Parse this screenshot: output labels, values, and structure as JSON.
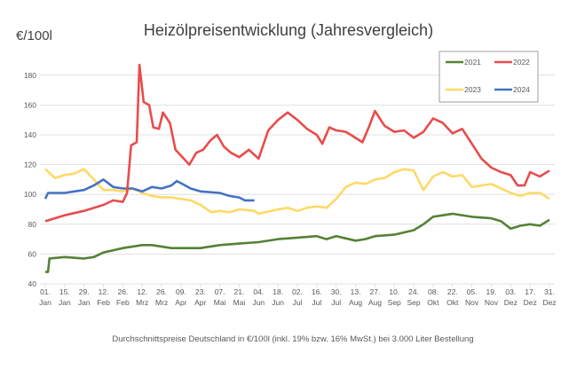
{
  "chart_data": {
    "type": "line",
    "title": "Heizölpreisentwicklung (Jahresvergleich)",
    "ylabel": "€/100l",
    "caption": "Durchschnittspreise Deutschland in €/100l (inkl. 19% bzw. 16%  MwSt.) bei 3.000 Liter Bestellung",
    "ylim": [
      40,
      190
    ],
    "yticks": [
      40,
      60,
      80,
      100,
      120,
      140,
      160,
      180
    ],
    "grid": true,
    "legend_position": "top-right",
    "xticks": [
      [
        "01.",
        "Jan"
      ],
      [
        "15.",
        "Jan"
      ],
      [
        "29.",
        "Jan"
      ],
      [
        "12.",
        "Feb"
      ],
      [
        "26.",
        "Feb"
      ],
      [
        "12.",
        "Mrz"
      ],
      [
        "26.",
        "Mrz"
      ],
      [
        "09.",
        "Apr"
      ],
      [
        "23.",
        "Apr"
      ],
      [
        "07.",
        "Mai"
      ],
      [
        "21.",
        "Mai"
      ],
      [
        "04.",
        "Jun"
      ],
      [
        "18.",
        "Jun"
      ],
      [
        "02.",
        "Jul"
      ],
      [
        "16.",
        "Jul"
      ],
      [
        "30.",
        "Jul"
      ],
      [
        "13.",
        "Aug"
      ],
      [
        "27.",
        "Aug"
      ],
      [
        "10.",
        "Sep"
      ],
      [
        "24.",
        "Sep"
      ],
      [
        "08.",
        "Okt"
      ],
      [
        "22.",
        "Okt"
      ],
      [
        "05.",
        "Nov"
      ],
      [
        "19.",
        "Nov"
      ],
      [
        "03.",
        "Dez"
      ],
      [
        "17.",
        "Dez"
      ],
      [
        "31.",
        "Dez"
      ]
    ],
    "series": [
      {
        "name": "2021",
        "color": "#548235",
        "points": [
          [
            "01-01",
            48
          ],
          [
            "01-03",
            48
          ],
          [
            "01-04",
            57
          ],
          [
            "01-15",
            58
          ],
          [
            "01-29",
            57
          ],
          [
            "02-05",
            58
          ],
          [
            "02-12",
            61
          ],
          [
            "02-26",
            64
          ],
          [
            "03-12",
            66
          ],
          [
            "03-19",
            66
          ],
          [
            "04-02",
            64
          ],
          [
            "04-23",
            64
          ],
          [
            "05-07",
            66
          ],
          [
            "05-21",
            67
          ],
          [
            "06-04",
            68
          ],
          [
            "06-18",
            70
          ],
          [
            "07-02",
            71
          ],
          [
            "07-16",
            72
          ],
          [
            "07-23",
            70
          ],
          [
            "07-30",
            72
          ],
          [
            "08-13",
            69
          ],
          [
            "08-20",
            70
          ],
          [
            "08-27",
            72
          ],
          [
            "09-10",
            73
          ],
          [
            "09-24",
            76
          ],
          [
            "10-01",
            80
          ],
          [
            "10-08",
            85
          ],
          [
            "10-22",
            87
          ],
          [
            "11-05",
            85
          ],
          [
            "11-19",
            84
          ],
          [
            "11-26",
            82
          ],
          [
            "12-03",
            77
          ],
          [
            "12-10",
            79
          ],
          [
            "12-17",
            80
          ],
          [
            "12-24",
            79
          ],
          [
            "12-31",
            83
          ]
        ]
      },
      {
        "name": "2022",
        "color": "#E84C4C",
        "points": [
          [
            "01-01",
            82
          ],
          [
            "01-15",
            86
          ],
          [
            "01-29",
            89
          ],
          [
            "02-12",
            93
          ],
          [
            "02-19",
            96
          ],
          [
            "02-26",
            95
          ],
          [
            "03-01",
            101
          ],
          [
            "03-04",
            133
          ],
          [
            "03-08",
            135
          ],
          [
            "03-10",
            187
          ],
          [
            "03-13",
            162
          ],
          [
            "03-17",
            160
          ],
          [
            "03-20",
            145
          ],
          [
            "03-24",
            144
          ],
          [
            "03-27",
            155
          ],
          [
            "04-01",
            148
          ],
          [
            "04-05",
            130
          ],
          [
            "04-10",
            125
          ],
          [
            "04-15",
            120
          ],
          [
            "04-20",
            128
          ],
          [
            "04-25",
            130
          ],
          [
            "04-30",
            136
          ],
          [
            "05-05",
            140
          ],
          [
            "05-10",
            132
          ],
          [
            "05-15",
            128
          ],
          [
            "05-21",
            125
          ],
          [
            "05-28",
            130
          ],
          [
            "06-04",
            124
          ],
          [
            "06-11",
            143
          ],
          [
            "06-18",
            150
          ],
          [
            "06-25",
            155
          ],
          [
            "07-02",
            150
          ],
          [
            "07-09",
            144
          ],
          [
            "07-16",
            140
          ],
          [
            "07-20",
            134
          ],
          [
            "07-25",
            145
          ],
          [
            "07-30",
            143
          ],
          [
            "08-06",
            142
          ],
          [
            "08-13",
            138
          ],
          [
            "08-18",
            135
          ],
          [
            "08-23",
            146
          ],
          [
            "08-27",
            156
          ],
          [
            "09-03",
            146
          ],
          [
            "09-10",
            142
          ],
          [
            "09-17",
            143
          ],
          [
            "09-24",
            138
          ],
          [
            "10-01",
            142
          ],
          [
            "10-08",
            151
          ],
          [
            "10-15",
            148
          ],
          [
            "10-22",
            141
          ],
          [
            "10-29",
            144
          ],
          [
            "11-05",
            134
          ],
          [
            "11-12",
            124
          ],
          [
            "11-19",
            118
          ],
          [
            "11-26",
            115
          ],
          [
            "12-03",
            113
          ],
          [
            "12-08",
            106
          ],
          [
            "12-13",
            106
          ],
          [
            "12-17",
            115
          ],
          [
            "12-24",
            112
          ],
          [
            "12-31",
            116
          ]
        ]
      },
      {
        "name": "2023",
        "color": "#FFD966",
        "points": [
          [
            "01-01",
            117
          ],
          [
            "01-08",
            111
          ],
          [
            "01-15",
            113
          ],
          [
            "01-22",
            114
          ],
          [
            "01-29",
            117
          ],
          [
            "02-05",
            110
          ],
          [
            "02-12",
            103
          ],
          [
            "02-19",
            103
          ],
          [
            "02-26",
            102
          ],
          [
            "03-05",
            104
          ],
          [
            "03-12",
            101
          ],
          [
            "03-19",
            99
          ],
          [
            "03-26",
            98
          ],
          [
            "04-02",
            98
          ],
          [
            "04-16",
            96
          ],
          [
            "04-23",
            93
          ],
          [
            "05-01",
            88
          ],
          [
            "05-07",
            89
          ],
          [
            "05-14",
            88
          ],
          [
            "05-21",
            90
          ],
          [
            "06-01",
            89
          ],
          [
            "06-04",
            87
          ],
          [
            "06-18",
            90
          ],
          [
            "06-25",
            91
          ],
          [
            "07-02",
            89
          ],
          [
            "07-09",
            91
          ],
          [
            "07-16",
            92
          ],
          [
            "07-23",
            91
          ],
          [
            "07-30",
            97
          ],
          [
            "08-06",
            105
          ],
          [
            "08-13",
            108
          ],
          [
            "08-20",
            107
          ],
          [
            "08-27",
            110
          ],
          [
            "09-03",
            111
          ],
          [
            "09-10",
            115
          ],
          [
            "09-17",
            117
          ],
          [
            "09-24",
            116
          ],
          [
            "10-01",
            103
          ],
          [
            "10-08",
            112
          ],
          [
            "10-15",
            115
          ],
          [
            "10-22",
            112
          ],
          [
            "10-29",
            113
          ],
          [
            "11-05",
            105
          ],
          [
            "11-12",
            106
          ],
          [
            "11-19",
            107
          ],
          [
            "11-26",
            104
          ],
          [
            "12-03",
            101
          ],
          [
            "12-10",
            99
          ],
          [
            "12-17",
            101
          ],
          [
            "12-24",
            101
          ],
          [
            "12-31",
            97
          ]
        ]
      },
      {
        "name": "2024",
        "color": "#4472C4",
        "points": [
          [
            "01-01",
            97
          ],
          [
            "01-03",
            101
          ],
          [
            "01-15",
            101
          ],
          [
            "01-22",
            102
          ],
          [
            "01-29",
            103
          ],
          [
            "02-05",
            106
          ],
          [
            "02-12",
            110
          ],
          [
            "02-19",
            105
          ],
          [
            "02-26",
            104
          ],
          [
            "03-05",
            104
          ],
          [
            "03-12",
            102
          ],
          [
            "03-19",
            105
          ],
          [
            "03-26",
            104
          ],
          [
            "04-02",
            106
          ],
          [
            "04-06",
            109
          ],
          [
            "04-10",
            107
          ],
          [
            "04-16",
            104
          ],
          [
            "04-23",
            102
          ],
          [
            "05-07",
            101
          ],
          [
            "05-14",
            99
          ],
          [
            "05-21",
            98
          ],
          [
            "05-25",
            96
          ],
          [
            "06-01",
            96
          ]
        ]
      }
    ]
  }
}
